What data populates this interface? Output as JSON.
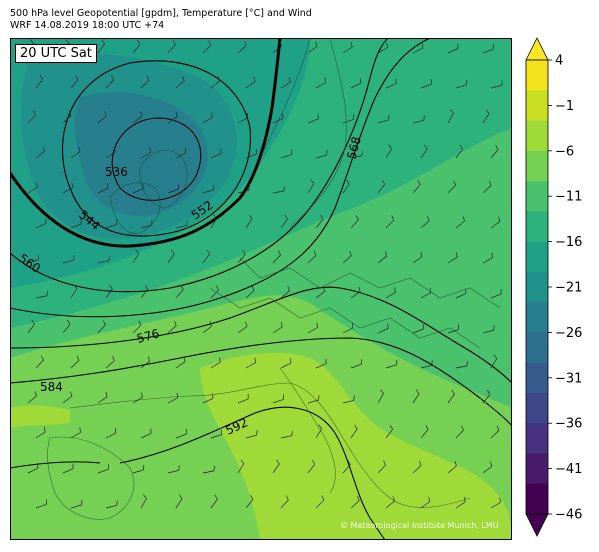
{
  "header": {
    "line1": "500 hPa level Geopotential [gpdm], Temperature [°C] and Wind",
    "line2": "WRF 14.08.2019 18:00 UTC +74"
  },
  "time_label": "20 UTC Sat",
  "credit": "© Meteorological Institute Munich, LMU",
  "colorbar": {
    "ticks": [
      "4",
      "−1",
      "−6",
      "−11",
      "−16",
      "−21",
      "−26",
      "−31",
      "−36",
      "−41",
      "−46"
    ],
    "colors": [
      "#f2e31c",
      "#c9e020",
      "#a0da39",
      "#75d054",
      "#4ac16d",
      "#2db27d",
      "#1fa187",
      "#21918c",
      "#277f8e",
      "#2e6e8e",
      "#365c8d",
      "#3f4788",
      "#46327e",
      "#481b6d",
      "#440154"
    ]
  },
  "contour_labels": [
    "536",
    "544",
    "552",
    "560",
    "568",
    "576",
    "584",
    "592"
  ]
}
